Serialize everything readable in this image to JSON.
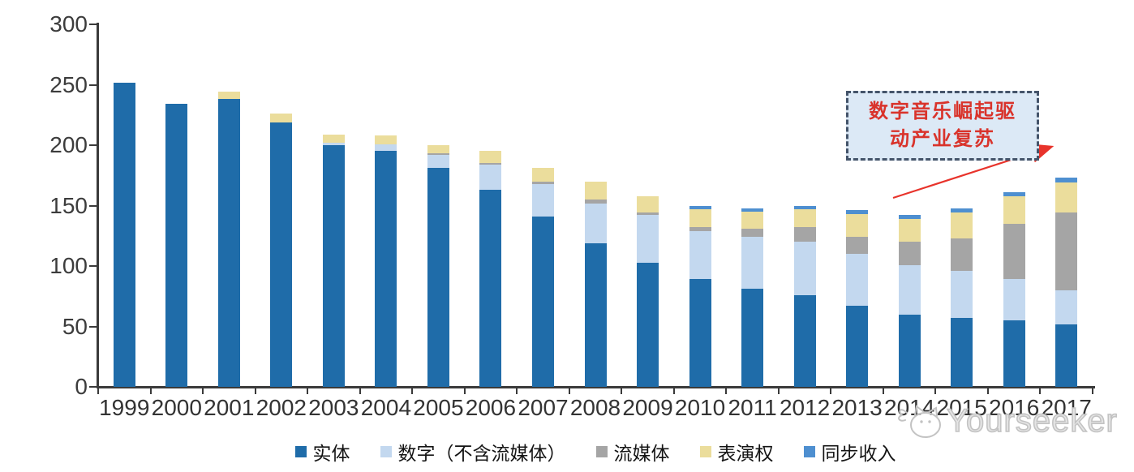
{
  "chart_data": {
    "type": "bar",
    "stacked": true,
    "title": "",
    "xlabel": "",
    "ylabel": "",
    "categories": [
      "1999",
      "2000",
      "2001",
      "2002",
      "2003",
      "2004",
      "2005",
      "2006",
      "2007",
      "2008",
      "2009",
      "2010",
      "2011",
      "2012",
      "2013",
      "2014",
      "2015",
      "2016",
      "2017"
    ],
    "series": [
      {
        "name": "实体",
        "color": "#1F6CA9",
        "values": [
          252,
          234,
          238,
          219,
          200,
          195,
          181,
          163,
          141,
          119,
          103,
          89,
          81,
          76,
          67,
          60,
          57,
          55,
          52
        ]
      },
      {
        "name": "数字（不含流媒体）",
        "color": "#C3D8EF",
        "values": [
          0,
          0,
          0,
          0,
          2,
          6,
          11,
          21,
          27,
          33,
          39,
          40,
          43,
          44,
          43,
          41,
          39,
          34,
          28
        ]
      },
      {
        "name": "流媒体",
        "color": "#A5A5A5",
        "values": [
          0,
          0,
          0,
          0,
          0,
          0,
          1,
          1,
          2,
          3,
          2,
          3,
          7,
          12,
          14,
          19,
          27,
          46,
          64
        ]
      },
      {
        "name": "表演权",
        "color": "#EBDD9C",
        "values": [
          0,
          0,
          6,
          7,
          7,
          7,
          7,
          10,
          11,
          15,
          14,
          15,
          14,
          15,
          19,
          19,
          21,
          23,
          25
        ]
      },
      {
        "name": "同步收入",
        "color": "#4E8FD0",
        "values": [
          0,
          0,
          0,
          0,
          0,
          0,
          0,
          0,
          0,
          0,
          0,
          3,
          3,
          3,
          3,
          3,
          4,
          3,
          4
        ]
      }
    ],
    "ylim": [
      0,
      300
    ],
    "yticks": [
      0,
      50,
      100,
      150,
      200,
      250,
      300
    ],
    "grid": false,
    "legend_position": "bottom"
  },
  "annotation": {
    "lines": [
      "数字音乐崛起驱",
      "动产业复苏"
    ],
    "text_color": "#D9332B",
    "box_fill": "#DCE9F6",
    "box_border": "#44546A",
    "arrow_color": "#E8332B"
  },
  "watermark": {
    "text": "Yourseeker",
    "icon": "cat-logo-icon",
    "color": "#c3c3c3"
  },
  "axis": {
    "line_color": "#3a3a3a",
    "label_color": "#333333"
  }
}
